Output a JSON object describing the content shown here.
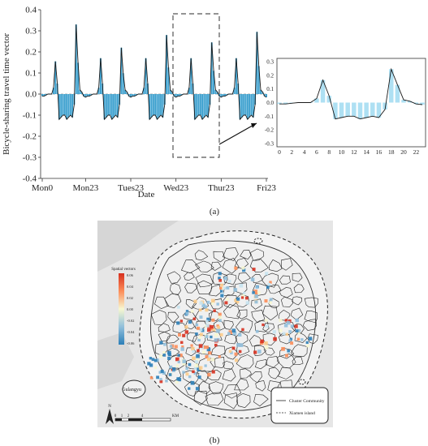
{
  "panel_a": {
    "caption": "(a)"
  },
  "panel_b": {
    "caption": "(b)",
    "legend_title": "Spatial vectors",
    "legend_ticks": [
      "0.06",
      "0.04",
      "0.02",
      "0.00",
      "-0.02",
      "-0.04",
      "-0.06"
    ],
    "map_labels": {
      "gulangyu": "Gulangyu",
      "north": "N",
      "scale_ticks": [
        "0",
        "1",
        "2",
        "4"
      ],
      "scale_unit": "KM"
    },
    "key": {
      "cluster": "Cluster Community",
      "island": "Xiamen island"
    },
    "colors": {
      "diverging_high": "#d7301f",
      "diverging_mid": "#f7f7d0",
      "diverging_low": "#2c7fb8",
      "map_bg": "#e9e9e9",
      "water": "#dcdcdc"
    }
  },
  "chart_data": [
    {
      "type": "bar",
      "title": "",
      "xlabel": "Date",
      "ylabel": "Bicycle-sharing travel time vector",
      "ylim": [
        -0.4,
        0.4
      ],
      "yticks": [
        "0.4",
        "0.3",
        "0.2",
        "0.1",
        "0.0",
        "-0.1",
        "-0.2",
        "-0.3",
        "-0.4"
      ],
      "xtick_labels": [
        "Mon0",
        "Mon23",
        "Tues23",
        "Wed23",
        "Thur23",
        "Fri23"
      ],
      "annotation": "dashed box around Wednesday",
      "bar_color": "#3a9fce",
      "line_color": "#1a1a1a",
      "hours": 120,
      "days": [
        {
          "peak_am": 0.155,
          "peak_pm": 0.33
        },
        {
          "peak_am": 0.17,
          "peak_pm": 0.22
        },
        {
          "peak_am": 0.17,
          "peak_pm": 0.28
        },
        {
          "peak_am": 0.17,
          "peak_pm": 0.245
        },
        {
          "peak_am": 0.17,
          "peak_pm": 0.295
        }
      ],
      "grid": false
    },
    {
      "type": "bar",
      "title": "",
      "xlabel": "",
      "ylabel": "",
      "ylim": [
        -0.3,
        0.3
      ],
      "yticks": [
        "0.3",
        "0.2",
        "0.1",
        "0.0",
        "-0.1",
        "-0.2",
        "-0.3"
      ],
      "x": [
        0,
        1,
        2,
        3,
        4,
        5,
        6,
        7,
        8,
        9,
        10,
        11,
        12,
        13,
        14,
        15,
        16,
        17,
        18,
        19,
        20,
        21,
        22,
        23
      ],
      "values": [
        -0.01,
        -0.01,
        -0.005,
        0.0,
        0.0,
        0.0,
        0.03,
        0.165,
        0.05,
        -0.12,
        -0.11,
        -0.1,
        -0.1,
        -0.12,
        -0.11,
        -0.1,
        -0.11,
        -0.05,
        0.245,
        0.13,
        0.02,
        0.01,
        -0.01,
        -0.015
      ],
      "xtick_labels": [
        "0",
        "2",
        "4",
        "6",
        "8",
        "10",
        "12",
        "14",
        "16",
        "18",
        "20",
        "22"
      ],
      "bar_color": "#aee0f3",
      "line_color": "#1a1a1a",
      "grid": false
    }
  ]
}
